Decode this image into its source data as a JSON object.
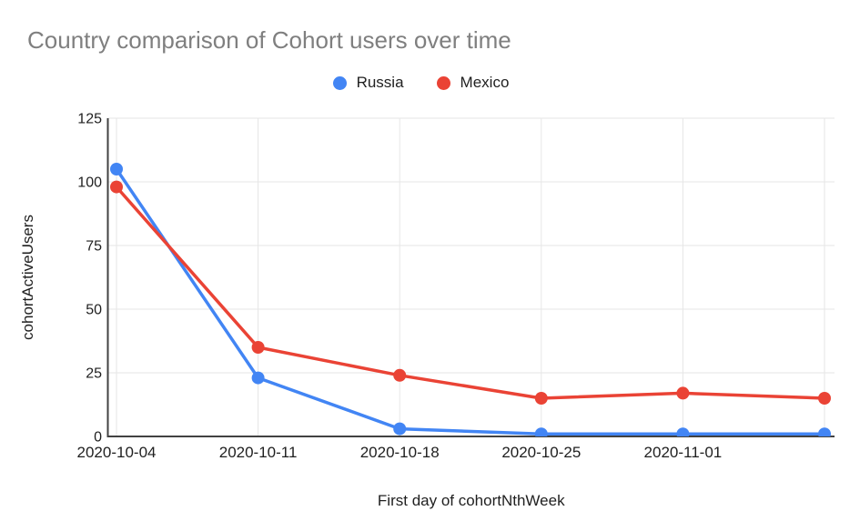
{
  "title": {
    "text": "Country comparison of Cohort users over time",
    "color": "#7F7F7F"
  },
  "legend": {
    "items": [
      {
        "label": "Russia",
        "color": "#4285F4"
      },
      {
        "label": "Mexico",
        "color": "#EA4335"
      }
    ]
  },
  "chart_data": {
    "type": "line",
    "title": "Country comparison of Cohort users over time",
    "xlabel": "First day of cohortNthWeek",
    "ylabel": "cohortActiveUsers",
    "categories": [
      "2020-10-04",
      "2020-10-11",
      "2020-10-18",
      "2020-10-25",
      "2020-11-01",
      ""
    ],
    "series": [
      {
        "name": "Russia",
        "color": "#4285F4",
        "values": [
          105,
          23,
          3,
          1,
          1,
          1
        ]
      },
      {
        "name": "Mexico",
        "color": "#EA4335",
        "values": [
          98,
          35,
          24,
          15,
          17,
          15
        ]
      }
    ],
    "ylim": [
      0,
      125
    ],
    "y_ticks": [
      0,
      25,
      50,
      75,
      100,
      125
    ],
    "grid": true,
    "legend_position": "top",
    "colors": {
      "axis": "#424242",
      "grid": "#E6E6E6",
      "tick_text": "#1F1F1F",
      "background": "#FFFFFF"
    }
  }
}
